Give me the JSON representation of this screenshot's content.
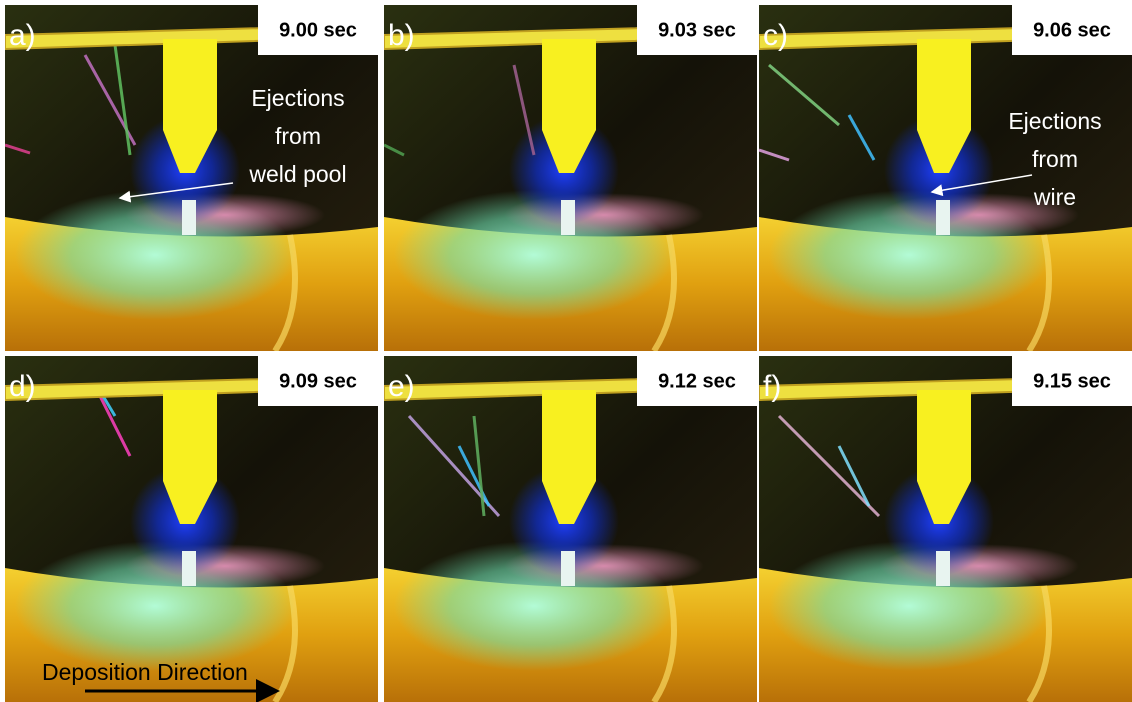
{
  "panels": [
    {
      "label": "a)",
      "time": "9.00 sec",
      "annotation": [
        "Ejections",
        "from",
        "weld pool"
      ]
    },
    {
      "label": "b)",
      "time": "9.03 sec"
    },
    {
      "label": "c)",
      "time": "9.06 sec",
      "annotation": [
        "Ejections",
        "from",
        "wire"
      ]
    },
    {
      "label": "d)",
      "time": "9.09 sec",
      "caption": "Deposition Direction"
    },
    {
      "label": "e)",
      "time": "9.12 sec"
    },
    {
      "label": "f)",
      "time": "9.15 sec"
    }
  ]
}
